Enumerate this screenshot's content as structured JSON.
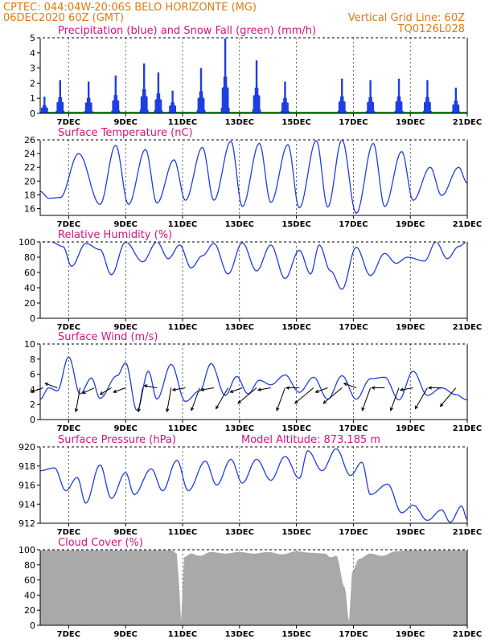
{
  "header": {
    "line1": "CPTEC:   044:04W-20:06S   BELO HORIZONTE (MG)",
    "line2": "06DEC2020 60Z (GMT)",
    "grid_note": "Vertical Grid Line: 60Z",
    "model_id": "TQ0126L028"
  },
  "colors": {
    "header": "#e07a10",
    "title": "#d4147f",
    "line": "#1f3fe0",
    "precip": "#1f3fe0",
    "snow": "#19a319",
    "cloud": "#a9a9a9",
    "wind_arrow": "#000000",
    "grid": "#000000"
  },
  "x_axis": {
    "start": "06DEC2020 06Z",
    "end": "21DEC2020 00Z",
    "tick_labels": [
      "7DEC",
      "9DEC",
      "11DEC",
      "13DEC",
      "15DEC",
      "17DEC",
      "19DEC",
      "21DEC"
    ],
    "tick_days": [
      1,
      3,
      5,
      7,
      9,
      11,
      13,
      15
    ]
  },
  "chart_data": [
    {
      "type": "bar",
      "title": "Precipitation (blue) and Snow Fall (green) (mm/h)",
      "ylim": [
        0,
        5
      ],
      "yticks": [
        0,
        1,
        2,
        3,
        4,
        5
      ],
      "series": [
        {
          "name": "Precipitation",
          "events": [
            [
              0.15,
              1.1
            ],
            [
              0.7,
              2.2
            ],
            [
              1.7,
              2.1
            ],
            [
              2.65,
              2.5
            ],
            [
              3.65,
              3.3
            ],
            [
              4.15,
              2.7
            ],
            [
              4.65,
              1.5
            ],
            [
              5.65,
              3.0
            ],
            [
              6.5,
              5.0
            ],
            [
              7.6,
              3.5
            ],
            [
              8.6,
              2.1
            ],
            [
              10.6,
              2.3
            ],
            [
              11.6,
              2.2
            ],
            [
              12.6,
              2.3
            ],
            [
              13.6,
              2.2
            ],
            [
              14.6,
              1.7
            ]
          ]
        },
        {
          "name": "Snow Fall",
          "values": [
            0
          ]
        }
      ]
    },
    {
      "type": "line",
      "title": "Surface Temperature (nC)",
      "ylim": [
        15,
        26
      ],
      "yticks": [
        16,
        18,
        20,
        22,
        24,
        26
      ],
      "series": [
        {
          "peaks": [
            [
              0,
              18.5
            ],
            [
              0.3,
              17.5
            ],
            [
              0.7,
              17.6
            ],
            [
              1.35,
              24
            ],
            [
              2.1,
              16.6
            ],
            [
              2.65,
              25.2
            ],
            [
              3.1,
              16.6
            ],
            [
              3.7,
              24.6
            ],
            [
              4.1,
              16.8
            ],
            [
              4.7,
              23.1
            ],
            [
              5.1,
              17.2
            ],
            [
              5.7,
              24.9
            ],
            [
              6.1,
              17.2
            ],
            [
              6.7,
              25.8
            ],
            [
              7.1,
              16.3
            ],
            [
              7.7,
              25.5
            ],
            [
              8.1,
              16.9
            ],
            [
              8.7,
              25.3
            ],
            [
              9.1,
              16.1
            ],
            [
              9.7,
              25.9
            ],
            [
              10.1,
              16.2
            ],
            [
              10.6,
              26
            ],
            [
              11.1,
              15.3
            ],
            [
              11.7,
              25.5
            ],
            [
              12.1,
              16.3
            ],
            [
              12.7,
              24.3
            ],
            [
              13.1,
              17.2
            ],
            [
              13.7,
              22
            ],
            [
              14.1,
              17.9
            ],
            [
              14.7,
              22
            ],
            [
              15,
              19.7
            ]
          ]
        }
      ]
    },
    {
      "type": "line",
      "title": "Relative Humidity (%)",
      "ylim": [
        0,
        100
      ],
      "yticks": [
        0,
        20,
        40,
        60,
        80,
        100
      ],
      "series": [
        {
          "peaks": [
            [
              0,
              100
            ],
            [
              0.4,
              100
            ],
            [
              0.8,
              94
            ],
            [
              1.1,
              68
            ],
            [
              1.6,
              98
            ],
            [
              2.1,
              90
            ],
            [
              2.5,
              57
            ],
            [
              3,
              100
            ],
            [
              3.6,
              74
            ],
            [
              4.1,
              100
            ],
            [
              4.5,
              78
            ],
            [
              4.9,
              96
            ],
            [
              5.3,
              66
            ],
            [
              5.7,
              82
            ],
            [
              6.1,
              98
            ],
            [
              6.6,
              58
            ],
            [
              7.1,
              99
            ],
            [
              7.6,
              62
            ],
            [
              8.1,
              96
            ],
            [
              8.6,
              52
            ],
            [
              9.1,
              89
            ],
            [
              9.5,
              58
            ],
            [
              9.8,
              96
            ],
            [
              10.2,
              62
            ],
            [
              10.6,
              38
            ],
            [
              11.1,
              93
            ],
            [
              11.6,
              56
            ],
            [
              12.1,
              85
            ],
            [
              12.5,
              72
            ],
            [
              12.9,
              80
            ],
            [
              13.5,
              75
            ],
            [
              13.9,
              100
            ],
            [
              14.3,
              78
            ],
            [
              14.7,
              94
            ],
            [
              15,
              100
            ]
          ]
        }
      ]
    },
    {
      "type": "line",
      "title": "Surface Wind (m/s)",
      "ylim": [
        0,
        10
      ],
      "yticks": [
        0,
        2,
        4,
        6,
        8,
        10
      ],
      "series": [
        {
          "peaks": [
            [
              0,
              2.7
            ],
            [
              0.3,
              4.2
            ],
            [
              0.6,
              3.8
            ],
            [
              1,
              8.3
            ],
            [
              1.4,
              3.4
            ],
            [
              1.8,
              5.5
            ],
            [
              2.1,
              2.8
            ],
            [
              2.7,
              5.8
            ],
            [
              3,
              7.5
            ],
            [
              3.4,
              1.2
            ],
            [
              3.8,
              6.4
            ],
            [
              4.1,
              2.7
            ],
            [
              4.6,
              7.3
            ],
            [
              5.1,
              2.4
            ],
            [
              5.6,
              3.8
            ],
            [
              6,
              7.4
            ],
            [
              6.5,
              3.2
            ],
            [
              6.9,
              5.7
            ],
            [
              7.3,
              3.4
            ],
            [
              7.7,
              5.2
            ],
            [
              8.1,
              4.6
            ],
            [
              8.6,
              5.9
            ],
            [
              9.1,
              3.6
            ],
            [
              9.6,
              5.6
            ],
            [
              10.1,
              2.7
            ],
            [
              10.6,
              5.8
            ],
            [
              11.1,
              2.7
            ],
            [
              11.6,
              5.4
            ],
            [
              12.1,
              5.6
            ],
            [
              12.6,
              2.6
            ],
            [
              13.1,
              6.4
            ],
            [
              13.6,
              3.2
            ],
            [
              14.1,
              4.2
            ],
            [
              14.6,
              3.3
            ],
            [
              15,
              2.6
            ]
          ]
        }
      ],
      "wind_vectors": [
        [
          0.1,
          -160
        ],
        [
          0.6,
          160
        ],
        [
          1.4,
          -100
        ],
        [
          1.9,
          205
        ],
        [
          2.5,
          -150
        ],
        [
          3.0,
          200
        ],
        [
          3.6,
          -100
        ],
        [
          4.1,
          170
        ],
        [
          4.6,
          -100
        ],
        [
          5.1,
          190
        ],
        [
          5.6,
          -110
        ],
        [
          6.1,
          190
        ],
        [
          6.6,
          -120
        ],
        [
          7.1,
          200
        ],
        [
          7.6,
          -140
        ],
        [
          8.1,
          190
        ],
        [
          8.6,
          -110
        ],
        [
          9.1,
          180
        ],
        [
          9.6,
          -140
        ],
        [
          10.1,
          200
        ],
        [
          10.6,
          -140
        ],
        [
          11.1,
          160
        ],
        [
          11.6,
          -110
        ],
        [
          12.1,
          180
        ],
        [
          12.6,
          -110
        ],
        [
          13.1,
          190
        ],
        [
          13.6,
          -120
        ],
        [
          14.1,
          180
        ],
        [
          14.6,
          -130
        ]
      ]
    },
    {
      "type": "line",
      "title": "Surface Pressure (hPa)",
      "annotation": "Model Altitude: 873.185  m",
      "ylim": [
        912,
        920
      ],
      "yticks": [
        912,
        914,
        916,
        918,
        920
      ],
      "series": [
        {
          "peaks": [
            [
              0,
              917.5
            ],
            [
              0.5,
              917.8
            ],
            [
              0.9,
              915.4
            ],
            [
              1.3,
              916.8
            ],
            [
              1.6,
              914.1
            ],
            [
              2.1,
              918.1
            ],
            [
              2.5,
              914.6
            ],
            [
              3,
              917.3
            ],
            [
              3.3,
              915
            ],
            [
              3.9,
              917.7
            ],
            [
              4.3,
              915.4
            ],
            [
              4.8,
              918.6
            ],
            [
              5.2,
              915.4
            ],
            [
              5.8,
              918.5
            ],
            [
              6.2,
              916
            ],
            [
              6.7,
              918.7
            ],
            [
              7.1,
              916.2
            ],
            [
              7.6,
              918.7
            ],
            [
              8.1,
              916.5
            ],
            [
              8.6,
              919
            ],
            [
              9.1,
              916.7
            ],
            [
              9.4,
              919.6
            ],
            [
              9.9,
              917.5
            ],
            [
              10.4,
              919.8
            ],
            [
              10.9,
              917
            ],
            [
              11.3,
              918.4
            ],
            [
              11.6,
              915
            ],
            [
              12.2,
              916.1
            ],
            [
              12.7,
              913.1
            ],
            [
              13.1,
              913.9
            ],
            [
              13.6,
              912.3
            ],
            [
              14.1,
              913.4
            ],
            [
              14.4,
              912.1
            ],
            [
              14.8,
              913.8
            ],
            [
              15,
              912.4
            ]
          ]
        }
      ]
    },
    {
      "type": "area",
      "title": "Cloud Cover (%)",
      "ylim": [
        0,
        100
      ],
      "yticks": [
        0,
        20,
        40,
        60,
        80,
        100
      ],
      "series": [
        {
          "peaks": [
            [
              0,
              100
            ],
            [
              4.6,
              100
            ],
            [
              4.8,
              95
            ],
            [
              4.9,
              40
            ],
            [
              4.95,
              5
            ],
            [
              5.05,
              90
            ],
            [
              5.3,
              95
            ],
            [
              5.6,
              92
            ],
            [
              6.0,
              97
            ],
            [
              6.5,
              95
            ],
            [
              7.0,
              97
            ],
            [
              7.5,
              95
            ],
            [
              8.0,
              97
            ],
            [
              8.5,
              94
            ],
            [
              9.0,
              98
            ],
            [
              9.5,
              96
            ],
            [
              10.0,
              95
            ],
            [
              10.2,
              90
            ],
            [
              10.4,
              92
            ],
            [
              10.7,
              50
            ],
            [
              10.85,
              5
            ],
            [
              10.95,
              70
            ],
            [
              11.2,
              88
            ],
            [
              11.6,
              95
            ],
            [
              12.0,
              92
            ],
            [
              12.5,
              98
            ],
            [
              13.0,
              100
            ],
            [
              15,
              100
            ]
          ]
        }
      ]
    }
  ]
}
